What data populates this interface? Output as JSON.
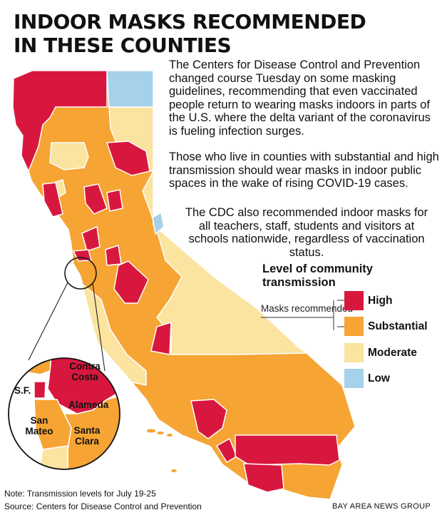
{
  "title": "INDOOR MASKS RECOMMENDED IN THESE COUNTIES",
  "paragraphs": [
    "The Centers for Disease Control and Prevention changed course Tuesday on some masking guidelines, recommending that even vaccinated people return to wearing masks indoors in parts of the U.S. where the delta variant of the coronavirus is fueling infection surges.",
    "Those who live in counties with substantial and high transmission should wear masks in indoor public spaces in the wake of rising COVID-19 cases.",
    "The CDC also recommended indoor masks for all teachers, staff, students and visitors at schools nationwide, regardless of vaccination status."
  ],
  "legend": {
    "title": "Level of community transmission",
    "note": "Masks recommended",
    "items": [
      {
        "label": "High",
        "color": "#d8173f"
      },
      {
        "label": "Substantial",
        "color": "#f6a433"
      },
      {
        "label": "Moderate",
        "color": "#fbe3a0"
      },
      {
        "label": "Low",
        "color": "#a6d1ea"
      }
    ]
  },
  "inset_labels": {
    "contra_costa": "Contra Costa",
    "sf": "S.F.",
    "alameda": "Alameda",
    "san_mateo": "San Mateo",
    "santa_clara": "Santa Clara"
  },
  "footer": {
    "note": "Note: Transmission levels for July 19-25",
    "source": "Source: Centers for Disease Control and Prevention",
    "credit": "BAY AREA NEWS GROUP"
  }
}
